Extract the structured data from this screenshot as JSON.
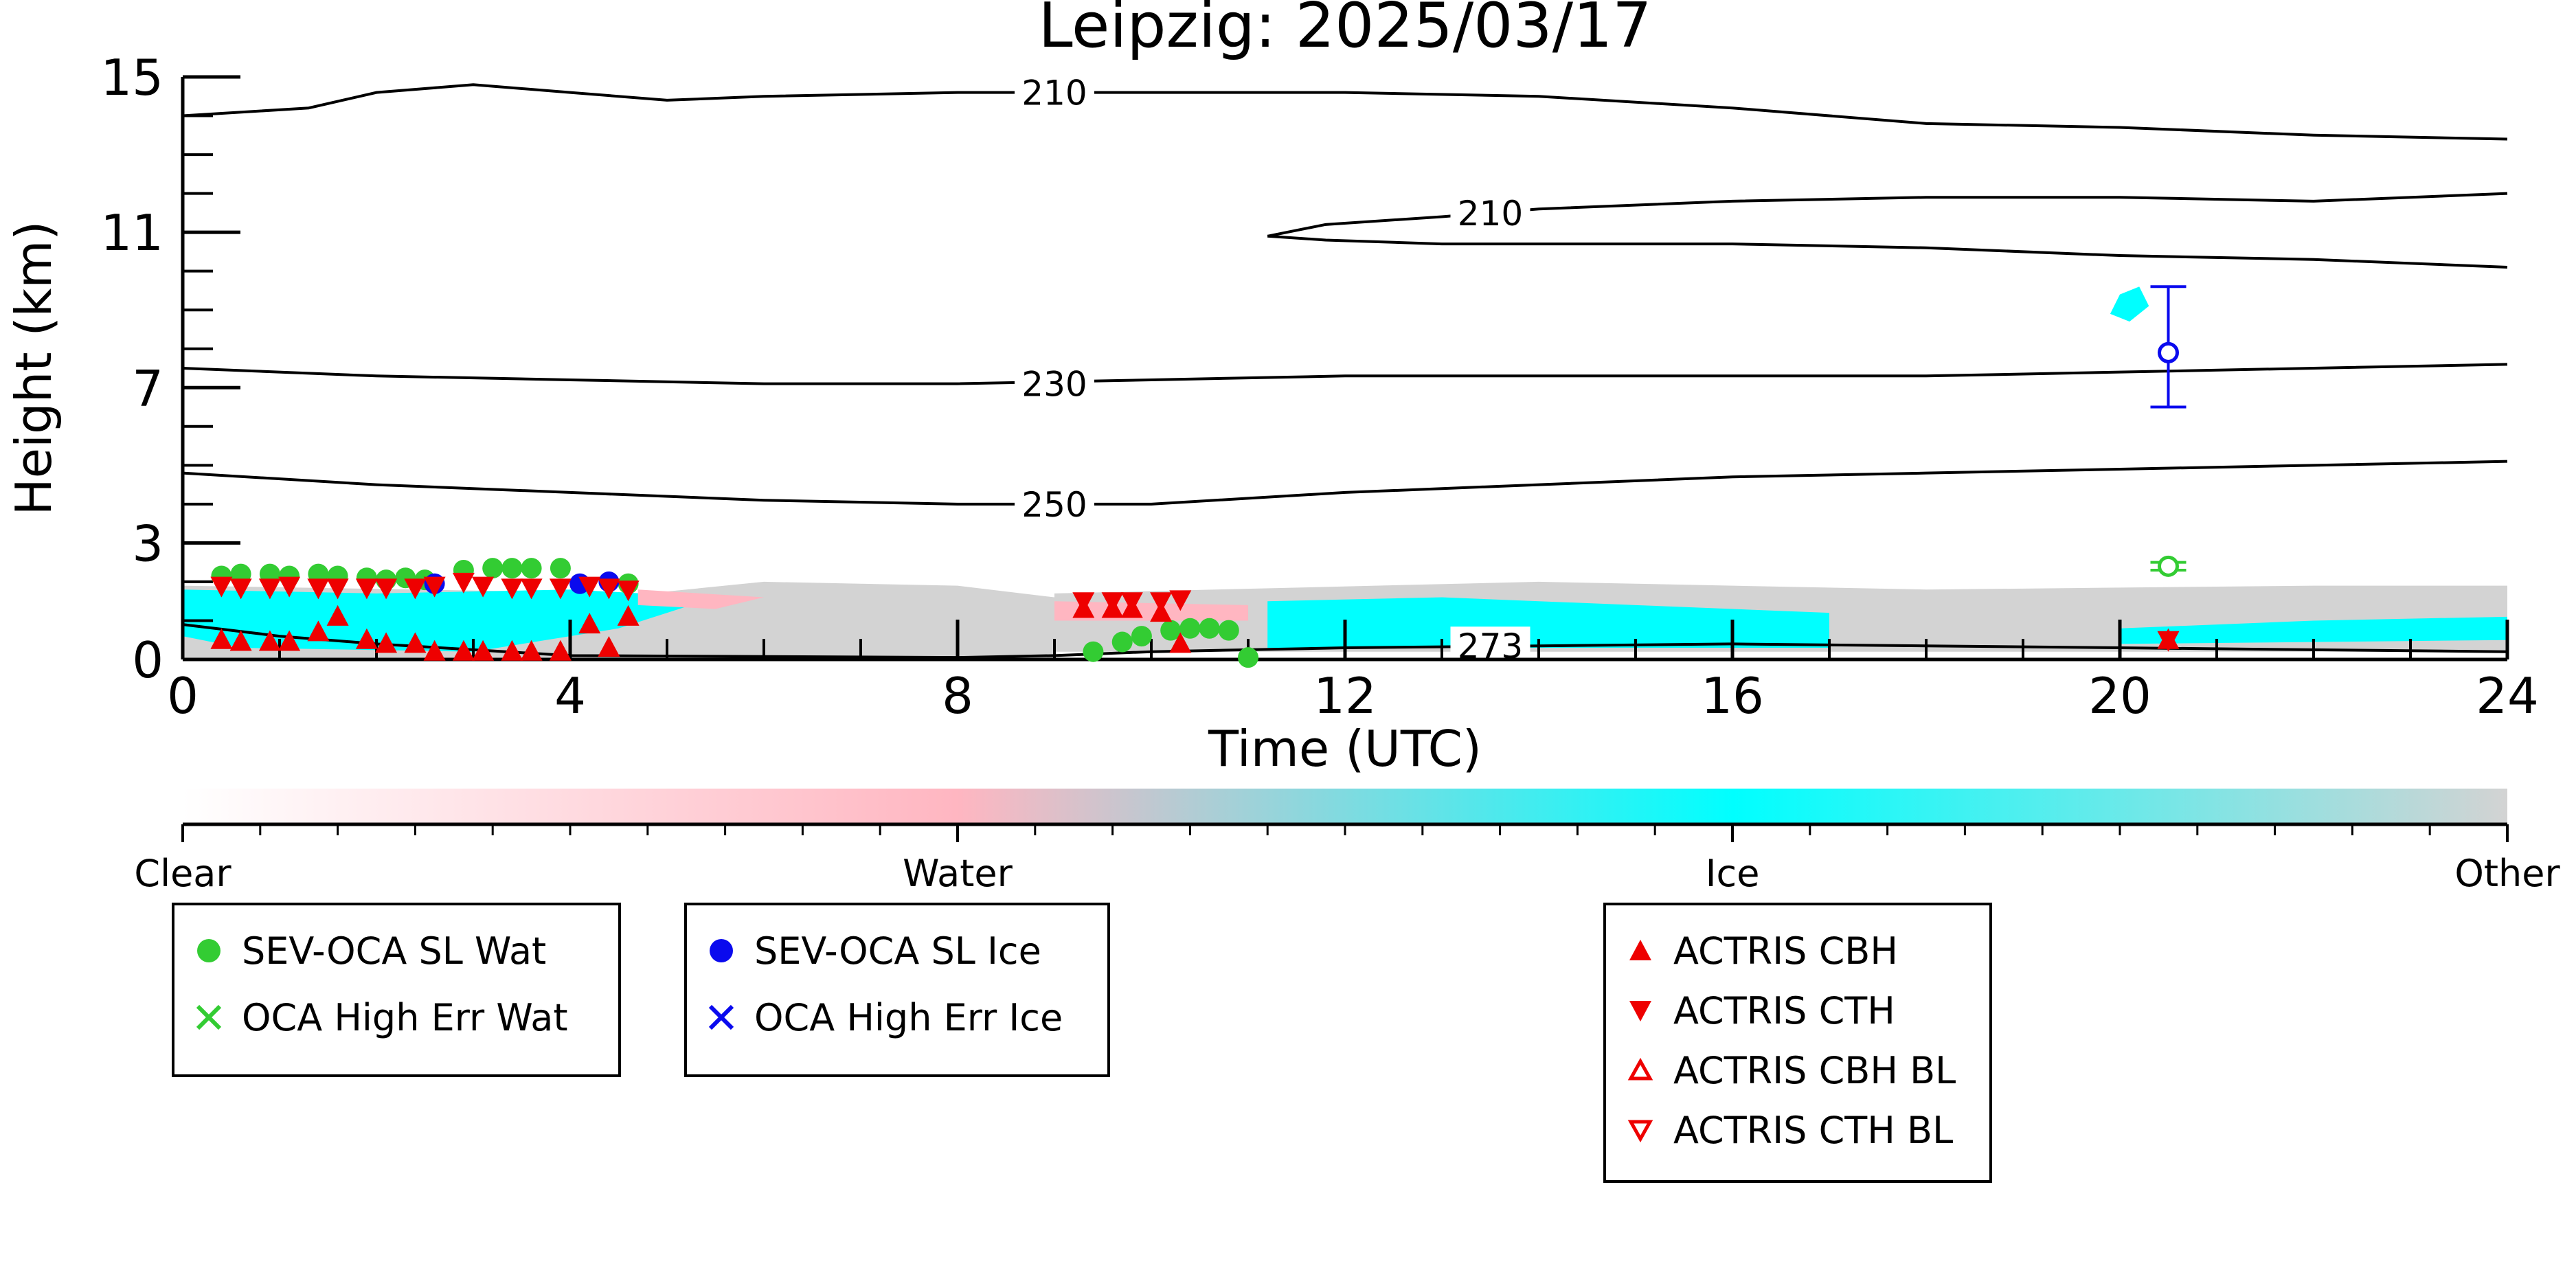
{
  "colors": {
    "clear": "#ffffff",
    "water": "#ffb6c1",
    "ice": "#00ffff",
    "other": "#d3d3d3",
    "sev_wat": "#33cc33",
    "sev_ice": "#0a0aee",
    "actris": "#ee0000",
    "contour": "#000000"
  },
  "chart_data": {
    "type": "scatter",
    "title": "Leipzig: 2025/03/17",
    "xlabel": "Time (UTC)",
    "ylabel": "Height (km)",
    "xlim": [
      0,
      24
    ],
    "ylim": [
      0,
      15
    ],
    "x_ticks": [
      "0",
      "4",
      "8",
      "12",
      "16",
      "20",
      "24"
    ],
    "y_ticks": [
      "0",
      "3",
      "7",
      "11",
      "15"
    ],
    "colorbar": {
      "labels": [
        "Clear",
        "Water",
        "Ice",
        "Other"
      ]
    },
    "contours": [
      {
        "label": "210",
        "points": [
          [
            0,
            14.0
          ],
          [
            1.3,
            14.2
          ],
          [
            2,
            14.6
          ],
          [
            3,
            14.8
          ],
          [
            4,
            14.6
          ],
          [
            5,
            14.4
          ],
          [
            6,
            14.5
          ],
          [
            8,
            14.6
          ],
          [
            10,
            14.6
          ],
          [
            12,
            14.6
          ],
          [
            14,
            14.5
          ],
          [
            16,
            14.2
          ],
          [
            18,
            13.8
          ],
          [
            20,
            13.7
          ],
          [
            22,
            13.5
          ],
          [
            24,
            13.4
          ]
        ]
      },
      {
        "label": "210",
        "points": [
          [
            11.2,
            10.9
          ],
          [
            11.8,
            11.2
          ],
          [
            13,
            11.4
          ],
          [
            14,
            11.6
          ],
          [
            16,
            11.8
          ],
          [
            18,
            11.9
          ],
          [
            20,
            11.9
          ],
          [
            22,
            11.8
          ],
          [
            24,
            12.0
          ]
        ]
      },
      {
        "label": "",
        "points": [
          [
            11.2,
            10.9
          ],
          [
            11.8,
            10.8
          ],
          [
            13,
            10.7
          ],
          [
            14,
            10.7
          ],
          [
            16,
            10.7
          ],
          [
            18,
            10.6
          ],
          [
            20,
            10.4
          ],
          [
            22,
            10.3
          ],
          [
            24,
            10.1
          ]
        ]
      },
      {
        "label": "230",
        "points": [
          [
            0,
            7.5
          ],
          [
            2,
            7.3
          ],
          [
            4,
            7.2
          ],
          [
            6,
            7.1
          ],
          [
            8,
            7.1
          ],
          [
            10,
            7.2
          ],
          [
            12,
            7.3
          ],
          [
            14,
            7.3
          ],
          [
            16,
            7.3
          ],
          [
            18,
            7.3
          ],
          [
            20,
            7.4
          ],
          [
            22,
            7.5
          ],
          [
            24,
            7.6
          ]
        ]
      },
      {
        "label": "250",
        "points": [
          [
            0,
            4.8
          ],
          [
            2,
            4.5
          ],
          [
            4,
            4.3
          ],
          [
            6,
            4.1
          ],
          [
            8,
            4.0
          ],
          [
            10,
            4.0
          ],
          [
            12,
            4.3
          ],
          [
            14,
            4.5
          ],
          [
            16,
            4.7
          ],
          [
            18,
            4.8
          ],
          [
            20,
            4.9
          ],
          [
            22,
            5.0
          ],
          [
            24,
            5.1
          ]
        ]
      },
      {
        "label": "273",
        "points": [
          [
            0,
            0.9
          ],
          [
            1,
            0.6
          ],
          [
            2,
            0.4
          ],
          [
            3,
            0.25
          ],
          [
            4,
            0.1
          ],
          [
            8,
            0.05
          ],
          [
            9,
            0.1
          ],
          [
            10,
            0.2
          ],
          [
            12,
            0.3
          ],
          [
            14,
            0.35
          ],
          [
            16,
            0.4
          ],
          [
            18,
            0.35
          ],
          [
            20,
            0.3
          ],
          [
            22,
            0.25
          ],
          [
            24,
            0.2
          ]
        ]
      }
    ],
    "classification_regions": [
      {
        "class": "Other",
        "polygon": [
          [
            0,
            1.9
          ],
          [
            4.8,
            1.7
          ],
          [
            6,
            2.0
          ],
          [
            8,
            1.9
          ],
          [
            9,
            1.6
          ],
          [
            9,
            0
          ],
          [
            0,
            0
          ]
        ]
      },
      {
        "class": "Other",
        "polygon": [
          [
            9,
            1.7
          ],
          [
            14,
            2.0
          ],
          [
            18,
            1.8
          ],
          [
            22,
            1.9
          ],
          [
            24,
            1.9
          ],
          [
            24,
            0.2
          ],
          [
            9,
            0.2
          ]
        ]
      },
      {
        "class": "Ice",
        "polygon": [
          [
            0,
            1.8
          ],
          [
            2,
            1.7
          ],
          [
            4,
            1.8
          ],
          [
            5.5,
            1.6
          ],
          [
            4.5,
            0.8
          ],
          [
            3,
            0.2
          ],
          [
            0.6,
            0.3
          ],
          [
            0,
            0.6
          ]
        ]
      },
      {
        "class": "Ice",
        "polygon": [
          [
            11.2,
            1.5
          ],
          [
            13,
            1.6
          ],
          [
            15,
            1.4
          ],
          [
            17,
            1.2
          ],
          [
            17,
            0.3
          ],
          [
            11.2,
            0.3
          ]
        ]
      },
      {
        "class": "Ice",
        "polygon": [
          [
            20,
            0.8
          ],
          [
            22,
            1.0
          ],
          [
            24,
            1.1
          ],
          [
            24,
            0.5
          ],
          [
            20,
            0.4
          ]
        ]
      },
      {
        "class": "Ice",
        "polygon": [
          [
            20,
            9.4
          ],
          [
            20.2,
            9.6
          ],
          [
            20.3,
            9.1
          ],
          [
            20.1,
            8.7
          ],
          [
            19.9,
            8.9
          ]
        ]
      },
      {
        "class": "Water",
        "polygon": [
          [
            4.7,
            1.8
          ],
          [
            6,
            1.6
          ],
          [
            5.5,
            1.3
          ],
          [
            4.7,
            1.4
          ]
        ]
      },
      {
        "class": "Water",
        "polygon": [
          [
            9,
            1.5
          ],
          [
            11,
            1.4
          ],
          [
            11,
            1.0
          ],
          [
            9,
            1.0
          ]
        ]
      }
    ],
    "series": [
      {
        "name": "SEV-OCA SL Wat",
        "marker": "filled-circle",
        "points": [
          [
            0.4,
            2.15
          ],
          [
            0.6,
            2.2
          ],
          [
            0.9,
            2.2
          ],
          [
            1.1,
            2.15
          ],
          [
            1.4,
            2.2
          ],
          [
            1.6,
            2.15
          ],
          [
            1.9,
            2.1
          ],
          [
            2.1,
            2.05
          ],
          [
            2.3,
            2.1
          ],
          [
            2.5,
            2.05
          ],
          [
            2.9,
            2.3
          ],
          [
            3.2,
            2.35
          ],
          [
            3.4,
            2.35
          ],
          [
            3.6,
            2.35
          ],
          [
            3.9,
            2.35
          ],
          [
            4.6,
            1.95
          ],
          [
            9.4,
            0.2
          ],
          [
            9.7,
            0.45
          ],
          [
            9.9,
            0.6
          ],
          [
            10.2,
            0.75
          ],
          [
            10.4,
            0.8
          ],
          [
            10.6,
            0.8
          ],
          [
            10.8,
            0.75
          ],
          [
            11.0,
            0.05
          ]
        ]
      },
      {
        "name": "OCA High Err Wat",
        "marker": "x",
        "points": []
      },
      {
        "name": "SEV-OCA SL Ice",
        "marker": "filled-circle",
        "points": [
          [
            2.6,
            1.95
          ],
          [
            4.1,
            1.95
          ],
          [
            4.4,
            2.0
          ]
        ]
      },
      {
        "name": "OCA High Err Ice",
        "marker": "x",
        "points": []
      },
      {
        "name": "SEV-OCA High Ice",
        "marker": "open-circle-errorbar",
        "points": [
          [
            20.5,
            7.9
          ]
        ],
        "err": [
          [
            6.5,
            9.6
          ]
        ]
      },
      {
        "name": "SEV-OCA Low Wat",
        "marker": "open-circle-errorbar",
        "points": [
          [
            20.5,
            2.4
          ]
        ],
        "err": [
          [
            2.3,
            2.5
          ]
        ]
      },
      {
        "name": "ACTRIS CBH",
        "marker": "triangle-up",
        "points": [
          [
            0.4,
            0.5
          ],
          [
            0.6,
            0.45
          ],
          [
            0.9,
            0.45
          ],
          [
            1.1,
            0.45
          ],
          [
            1.4,
            0.7
          ],
          [
            1.6,
            1.1
          ],
          [
            1.9,
            0.5
          ],
          [
            2.1,
            0.4
          ],
          [
            2.4,
            0.4
          ],
          [
            2.6,
            0.2
          ],
          [
            2.9,
            0.2
          ],
          [
            3.1,
            0.2
          ],
          [
            3.4,
            0.2
          ],
          [
            3.6,
            0.2
          ],
          [
            3.9,
            0.2
          ],
          [
            4.2,
            0.9
          ],
          [
            4.4,
            0.3
          ],
          [
            4.6,
            1.1
          ],
          [
            9.3,
            1.3
          ],
          [
            9.6,
            1.3
          ],
          [
            9.8,
            1.3
          ],
          [
            10.1,
            1.2
          ],
          [
            10.3,
            0.4
          ],
          [
            20.5,
            0.5
          ]
        ]
      },
      {
        "name": "ACTRIS CTH",
        "marker": "triangle-down",
        "points": [
          [
            0.4,
            1.9
          ],
          [
            0.6,
            1.85
          ],
          [
            0.9,
            1.85
          ],
          [
            1.1,
            1.9
          ],
          [
            1.4,
            1.85
          ],
          [
            1.6,
            1.85
          ],
          [
            1.9,
            1.85
          ],
          [
            2.1,
            1.85
          ],
          [
            2.4,
            1.85
          ],
          [
            2.6,
            1.9
          ],
          [
            2.9,
            2.0
          ],
          [
            3.1,
            1.9
          ],
          [
            3.4,
            1.85
          ],
          [
            3.6,
            1.85
          ],
          [
            3.9,
            1.85
          ],
          [
            4.2,
            1.9
          ],
          [
            4.4,
            1.85
          ],
          [
            4.6,
            1.8
          ],
          [
            9.3,
            1.5
          ],
          [
            9.6,
            1.5
          ],
          [
            9.8,
            1.5
          ],
          [
            10.1,
            1.5
          ],
          [
            10.3,
            1.55
          ],
          [
            20.5,
            0.5
          ]
        ]
      },
      {
        "name": "ACTRIS CBH BL",
        "marker": "open-triangle-up",
        "points": []
      },
      {
        "name": "ACTRIS CTH BL",
        "marker": "open-triangle-down",
        "points": []
      }
    ],
    "legend": [
      {
        "group": 1,
        "items": [
          {
            "label": "SEV-OCA SL Wat",
            "marker": "filled-circle",
            "color": "#33cc33"
          },
          {
            "label": "OCA High Err Wat",
            "marker": "x",
            "color": "#33cc33"
          }
        ]
      },
      {
        "group": 2,
        "items": [
          {
            "label": "SEV-OCA SL Ice",
            "marker": "filled-circle",
            "color": "#0a0aee"
          },
          {
            "label": "OCA High Err Ice",
            "marker": "x",
            "color": "#0a0aee"
          }
        ]
      },
      {
        "group": 3,
        "items": [
          {
            "label": "ACTRIS CBH",
            "marker": "triangle-up",
            "color": "#ee0000"
          },
          {
            "label": "ACTRIS CTH",
            "marker": "triangle-down",
            "color": "#ee0000"
          },
          {
            "label": "ACTRIS CBH BL",
            "marker": "open-triangle-up",
            "color": "#ee0000"
          },
          {
            "label": "ACTRIS CTH BL",
            "marker": "open-triangle-down",
            "color": "#ee0000"
          }
        ]
      }
    ]
  }
}
